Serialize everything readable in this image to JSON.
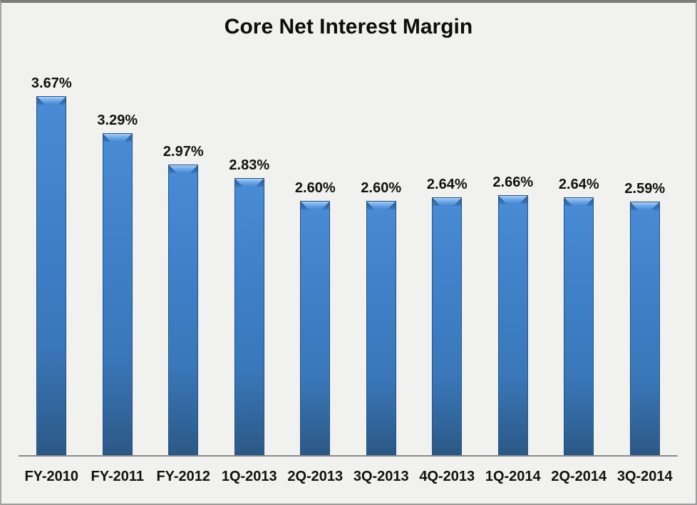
{
  "chart_data": {
    "type": "bar",
    "title": "Core Net Interest Margin",
    "categories": [
      "FY-2010",
      "FY-2011",
      "FY-2012",
      "1Q-2013",
      "2Q-2013",
      "3Q-2013",
      "4Q-2013",
      "1Q-2014",
      "2Q-2014",
      "3Q-2014"
    ],
    "values": [
      3.67,
      3.29,
      2.97,
      2.83,
      2.6,
      2.6,
      2.64,
      2.66,
      2.64,
      2.59
    ],
    "value_labels": [
      "3.67%",
      "3.29%",
      "2.97%",
      "2.83%",
      "2.60%",
      "2.60%",
      "2.64%",
      "2.66%",
      "2.64%",
      "2.59%"
    ],
    "xlabel": "",
    "ylabel": "",
    "ylim": [
      0,
      4.0
    ],
    "grid": false,
    "legend": false,
    "data_labels_position": "above-bar",
    "colors": {
      "bar_fill": "#3B78BC",
      "bar_fill_light": "#A9CEF5",
      "bar_fill_dark": "#2C5886",
      "bar_border": "#24527F",
      "axis_line": "#8A8A8A",
      "background": "#F1F1F0",
      "frame_border": "#9C9C9C",
      "text": "#111111"
    }
  }
}
